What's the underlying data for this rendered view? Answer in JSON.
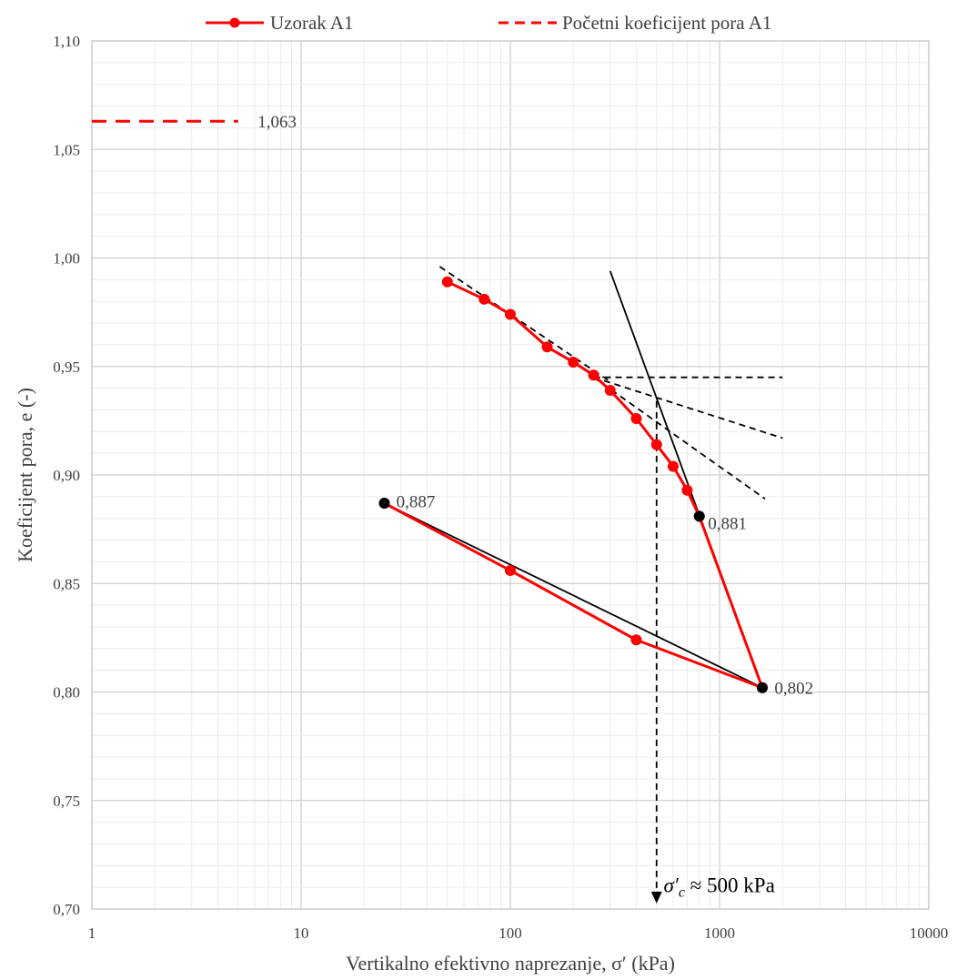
{
  "chart_data": {
    "type": "scatter",
    "x_scale": "log",
    "xlim": [
      1,
      10000
    ],
    "ylim": [
      0.7,
      1.1
    ],
    "grid": true,
    "legend_position": "top",
    "xlabel": "Vertikalno efektivno naprezanje, σ′ (kPa)",
    "ylabel": "Koeficijent pora, e (-)",
    "x_ticks": [
      "1",
      "10",
      "100",
      "1000",
      "10000"
    ],
    "y_ticks": [
      "0,70",
      "0,75",
      "0,80",
      "0,85",
      "0,90",
      "0,95",
      "1,00",
      "1,05",
      "1,10"
    ],
    "x_tick_values": [
      1,
      10,
      100,
      1000,
      10000
    ],
    "y_tick_values": [
      0.7,
      0.75,
      0.8,
      0.85,
      0.9,
      0.95,
      1.0,
      1.05,
      1.1
    ],
    "series": [
      {
        "name": "Uzorak A1",
        "color": "#ff0000",
        "style": "line-markers",
        "x": [
          50,
          75,
          100,
          150,
          200,
          250,
          300,
          400,
          500,
          600,
          700,
          800,
          1600,
          400,
          100,
          25
        ],
        "y": [
          0.989,
          0.981,
          0.974,
          0.959,
          0.952,
          0.946,
          0.939,
          0.926,
          0.914,
          0.904,
          0.893,
          0.881,
          0.802,
          0.824,
          0.856,
          0.887
        ]
      },
      {
        "name": "Početni koeficijent pora A1",
        "color": "#ff0000",
        "style": "dashed",
        "x": [
          1,
          5
        ],
        "y": [
          1.063,
          1.063
        ]
      }
    ],
    "construction_lines": [
      {
        "x": [
          46,
          300
        ],
        "y": [
          0.996,
          0.943
        ],
        "style": "dashed",
        "color": "#000000"
      },
      {
        "x": [
          250,
          2000
        ],
        "y": [
          0.945,
          0.945
        ],
        "style": "dashed",
        "color": "#000000"
      },
      {
        "x": [
          250,
          2000
        ],
        "y": [
          0.945,
          0.917
        ],
        "style": "dashed",
        "color": "#000000"
      },
      {
        "x": [
          250,
          1650
        ],
        "y": [
          0.945,
          0.889
        ],
        "style": "dashed",
        "color": "#000000"
      },
      {
        "x": [
          300,
          1600
        ],
        "y": [
          0.994,
          0.802
        ],
        "style": "solid",
        "color": "#000000"
      },
      {
        "x": [
          25,
          1600
        ],
        "y": [
          0.887,
          0.802
        ],
        "style": "solid",
        "color": "#000000"
      },
      {
        "x": [
          500,
          500
        ],
        "y": [
          0.934,
          0.703
        ],
        "style": "dashed-arrow",
        "color": "#000000"
      }
    ],
    "black_points": [
      {
        "x": 25,
        "y": 0.887
      },
      {
        "x": 800,
        "y": 0.881
      },
      {
        "x": 1600,
        "y": 0.802
      }
    ],
    "annotations": [
      {
        "text": "1,063",
        "x": 6.2,
        "y": 1.063
      },
      {
        "text": "0,887",
        "x": 28.5,
        "y": 0.888
      },
      {
        "text": "0,881",
        "x": 880,
        "y": 0.878
      },
      {
        "text": "0,802",
        "x": 1830,
        "y": 0.802
      }
    ],
    "sigma_label": "σ′c ≈ 500 kPa",
    "sigma_label_parts": {
      "symbol": "σ′",
      "sub": "c",
      "rest": " ≈ 500 kPa"
    },
    "sigma_label_at": {
      "x": 540,
      "y": 0.712
    }
  }
}
